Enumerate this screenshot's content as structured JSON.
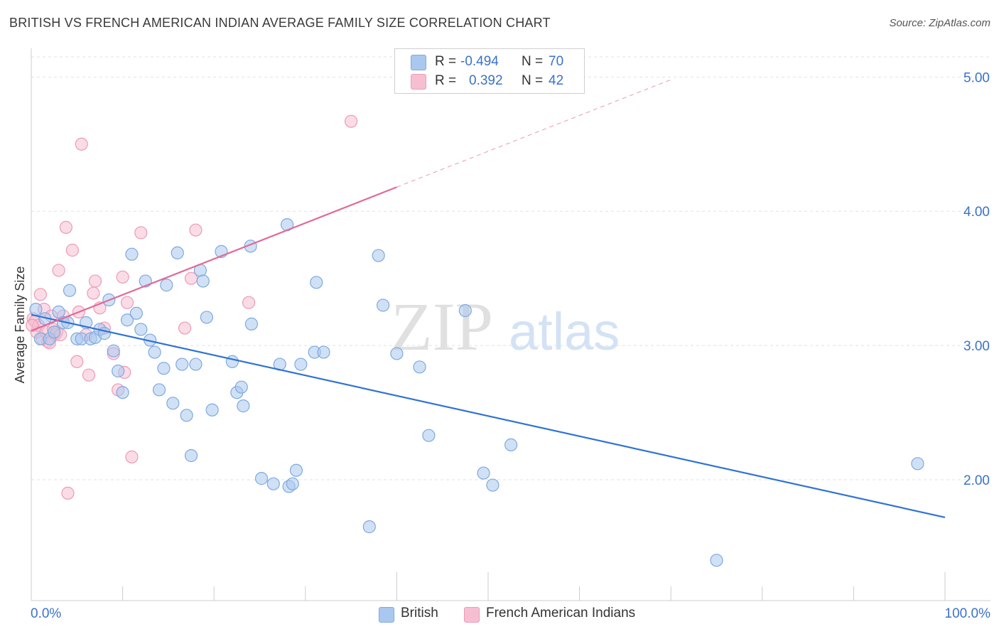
{
  "title": "BRITISH VS FRENCH AMERICAN INDIAN AVERAGE FAMILY SIZE CORRELATION CHART",
  "source": "Source: ZipAtlas.com",
  "watermark": {
    "zip": "ZIP",
    "atlas": "atlas"
  },
  "legend": {
    "r_label": "R =",
    "n_label": "N =",
    "british": {
      "r": "-0.494",
      "n": "70"
    },
    "french": {
      "r": "0.392",
      "n": "42"
    }
  },
  "colors": {
    "british_fill": "#aac8ef",
    "british_stroke": "#7fa9de",
    "british_line": "#2f73d4",
    "french_fill": "#f6bfd1",
    "french_stroke": "#ee9ab6",
    "french_line": "#e26a97",
    "axis_text": "#3b72c8",
    "grid": "#e2e2e2"
  },
  "chart_data": {
    "type": "scatter",
    "title": "BRITISH VS FRENCH AMERICAN INDIAN AVERAGE FAMILY SIZE CORRELATION CHART",
    "xlabel": "",
    "ylabel": "Average Family Size",
    "x_tick_labels": [
      "0.0%",
      "100.0%"
    ],
    "y_ticks": [
      2.0,
      3.0,
      4.0,
      5.0
    ],
    "y_tick_labels": [
      "2.00",
      "3.00",
      "4.00",
      "5.00"
    ],
    "xlim": [
      0,
      100
    ],
    "ylim": [
      1.1,
      5.15
    ],
    "grid": "horizontal dashed",
    "legend_position": "top-center",
    "series": [
      {
        "name": "British",
        "trend": {
          "x": [
            0,
            100
          ],
          "y": [
            3.23,
            1.72
          ]
        },
        "points": [
          [
            0.5,
            3.27
          ],
          [
            1.0,
            3.05
          ],
          [
            1.5,
            3.2
          ],
          [
            2.0,
            3.05
          ],
          [
            2.5,
            3.1
          ],
          [
            3.0,
            3.25
          ],
          [
            3.5,
            3.17
          ],
          [
            4.0,
            3.17
          ],
          [
            4.2,
            3.41
          ],
          [
            5.0,
            3.05
          ],
          [
            5.5,
            3.05
          ],
          [
            6.0,
            3.17
          ],
          [
            6.5,
            3.05
          ],
          [
            7.0,
            3.06
          ],
          [
            7.5,
            3.12
          ],
          [
            8.0,
            3.09
          ],
          [
            8.5,
            3.34
          ],
          [
            9.0,
            2.96
          ],
          [
            9.5,
            2.81
          ],
          [
            10.0,
            2.65
          ],
          [
            10.5,
            3.19
          ],
          [
            11.0,
            3.68
          ],
          [
            11.5,
            3.24
          ],
          [
            12.0,
            3.12
          ],
          [
            12.5,
            3.48
          ],
          [
            13.0,
            3.04
          ],
          [
            13.5,
            2.95
          ],
          [
            14.0,
            2.67
          ],
          [
            14.5,
            2.83
          ],
          [
            14.8,
            3.45
          ],
          [
            15.5,
            2.57
          ],
          [
            16.0,
            3.69
          ],
          [
            16.5,
            2.86
          ],
          [
            17.0,
            2.48
          ],
          [
            17.5,
            2.18
          ],
          [
            18.0,
            2.86
          ],
          [
            18.5,
            3.56
          ],
          [
            18.8,
            3.48
          ],
          [
            19.2,
            3.21
          ],
          [
            19.8,
            2.52
          ],
          [
            20.8,
            3.7
          ],
          [
            22.0,
            2.88
          ],
          [
            22.5,
            2.65
          ],
          [
            23.0,
            2.69
          ],
          [
            23.2,
            2.55
          ],
          [
            24.0,
            3.74
          ],
          [
            24.1,
            3.16
          ],
          [
            25.2,
            2.01
          ],
          [
            26.5,
            1.97
          ],
          [
            27.2,
            2.86
          ],
          [
            28.0,
            3.9
          ],
          [
            28.2,
            1.95
          ],
          [
            28.6,
            1.97
          ],
          [
            29.0,
            2.07
          ],
          [
            29.5,
            2.86
          ],
          [
            31.0,
            2.95
          ],
          [
            31.2,
            3.47
          ],
          [
            32.0,
            2.95
          ],
          [
            37.0,
            1.65
          ],
          [
            38.0,
            3.67
          ],
          [
            38.5,
            3.3
          ],
          [
            40.0,
            2.94
          ],
          [
            42.5,
            2.84
          ],
          [
            43.5,
            2.33
          ],
          [
            47.5,
            3.26
          ],
          [
            49.5,
            2.05
          ],
          [
            50.5,
            1.96
          ],
          [
            52.5,
            2.26
          ],
          [
            75.0,
            1.4
          ],
          [
            97.0,
            2.12
          ]
        ]
      },
      {
        "name": "French American Indians",
        "trend": {
          "x": [
            0,
            40
          ],
          "y": [
            3.11,
            4.18
          ]
        },
        "trend_dashed": {
          "x": [
            40,
            70
          ],
          "y": [
            4.18,
            4.98
          ]
        },
        "points": [
          [
            0.2,
            3.2
          ],
          [
            0.4,
            3.18
          ],
          [
            0.6,
            3.1
          ],
          [
            0.8,
            3.15
          ],
          [
            1.0,
            3.38
          ],
          [
            1.2,
            3.05
          ],
          [
            1.4,
            3.27
          ],
          [
            1.6,
            3.1
          ],
          [
            1.8,
            3.03
          ],
          [
            2.0,
            3.02
          ],
          [
            2.2,
            3.22
          ],
          [
            2.4,
            3.12
          ],
          [
            2.6,
            3.08
          ],
          [
            2.8,
            3.1
          ],
          [
            3.0,
            3.56
          ],
          [
            3.2,
            3.08
          ],
          [
            3.5,
            3.22
          ],
          [
            3.8,
            3.88
          ],
          [
            4.0,
            1.9
          ],
          [
            4.5,
            3.71
          ],
          [
            5.0,
            2.88
          ],
          [
            5.2,
            3.25
          ],
          [
            5.5,
            4.5
          ],
          [
            6.0,
            3.08
          ],
          [
            6.3,
            2.78
          ],
          [
            6.8,
            3.39
          ],
          [
            7.0,
            3.48
          ],
          [
            7.5,
            3.28
          ],
          [
            8.0,
            3.13
          ],
          [
            9.0,
            2.94
          ],
          [
            9.5,
            2.67
          ],
          [
            10.0,
            3.51
          ],
          [
            10.2,
            2.8
          ],
          [
            10.5,
            3.32
          ],
          [
            11.0,
            2.17
          ],
          [
            12.0,
            3.84
          ],
          [
            16.8,
            3.13
          ],
          [
            17.5,
            3.5
          ],
          [
            18.0,
            3.86
          ],
          [
            23.8,
            3.32
          ],
          [
            35.0,
            4.67
          ],
          [
            0.1,
            3.15
          ]
        ]
      }
    ]
  }
}
